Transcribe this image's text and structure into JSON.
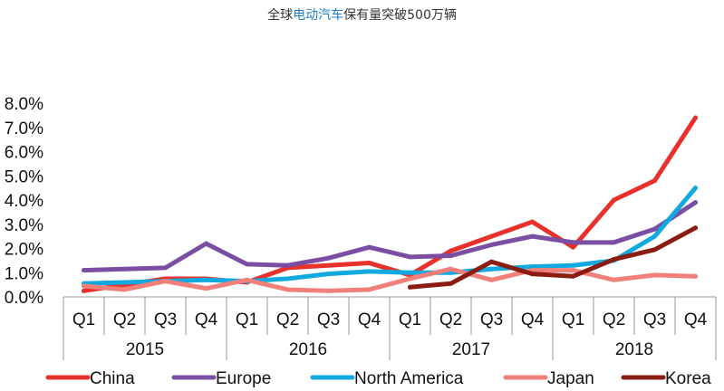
{
  "title": {
    "prefix": "全球",
    "highlight": "电动汽车",
    "suffix": "保有量突破500万辆"
  },
  "chart_data": {
    "type": "line",
    "title": "全球电动汽车保有量突破500万辆",
    "xlabel": "",
    "ylabel": "",
    "ylim": [
      0,
      8
    ],
    "y_ticks": [
      "0.0%",
      "1.0%",
      "2.0%",
      "3.0%",
      "4.0%",
      "5.0%",
      "6.0%",
      "7.0%",
      "8.0%"
    ],
    "quarters": [
      "Q1",
      "Q2",
      "Q3",
      "Q4",
      "Q1",
      "Q2",
      "Q3",
      "Q4",
      "Q1",
      "Q2",
      "Q3",
      "Q4",
      "Q1",
      "Q2",
      "Q3",
      "Q4"
    ],
    "years": [
      "2015",
      "2016",
      "2017",
      "2018"
    ],
    "grid": false,
    "legend_position": "bottom",
    "series": [
      {
        "name": "China",
        "color": "#e8312a",
        "values": [
          0.25,
          0.5,
          0.75,
          0.75,
          0.6,
          1.2,
          1.3,
          1.4,
          0.9,
          1.9,
          2.5,
          3.1,
          2.05,
          4.0,
          4.8,
          7.4
        ]
      },
      {
        "name": "Europe",
        "color": "#7a4fa3",
        "values": [
          1.1,
          1.15,
          1.2,
          2.2,
          1.35,
          1.3,
          1.6,
          2.05,
          1.65,
          1.7,
          2.15,
          2.5,
          2.25,
          2.25,
          2.8,
          3.9
        ]
      },
      {
        "name": "North America",
        "color": "#12a9e0",
        "values": [
          0.55,
          0.6,
          0.65,
          0.7,
          0.65,
          0.75,
          0.95,
          1.05,
          1.0,
          1.0,
          1.15,
          1.25,
          1.3,
          1.5,
          2.5,
          4.5
        ]
      },
      {
        "name": "Japan",
        "color": "#f08079",
        "values": [
          0.45,
          0.3,
          0.65,
          0.35,
          0.7,
          0.3,
          0.25,
          0.3,
          0.75,
          1.15,
          0.7,
          1.1,
          1.1,
          0.7,
          0.9,
          0.85
        ]
      },
      {
        "name": "Korea",
        "color": "#8a1c12",
        "values": [
          null,
          null,
          null,
          null,
          null,
          null,
          null,
          null,
          0.4,
          0.55,
          1.45,
          0.95,
          0.85,
          1.55,
          1.95,
          2.85
        ]
      }
    ]
  }
}
